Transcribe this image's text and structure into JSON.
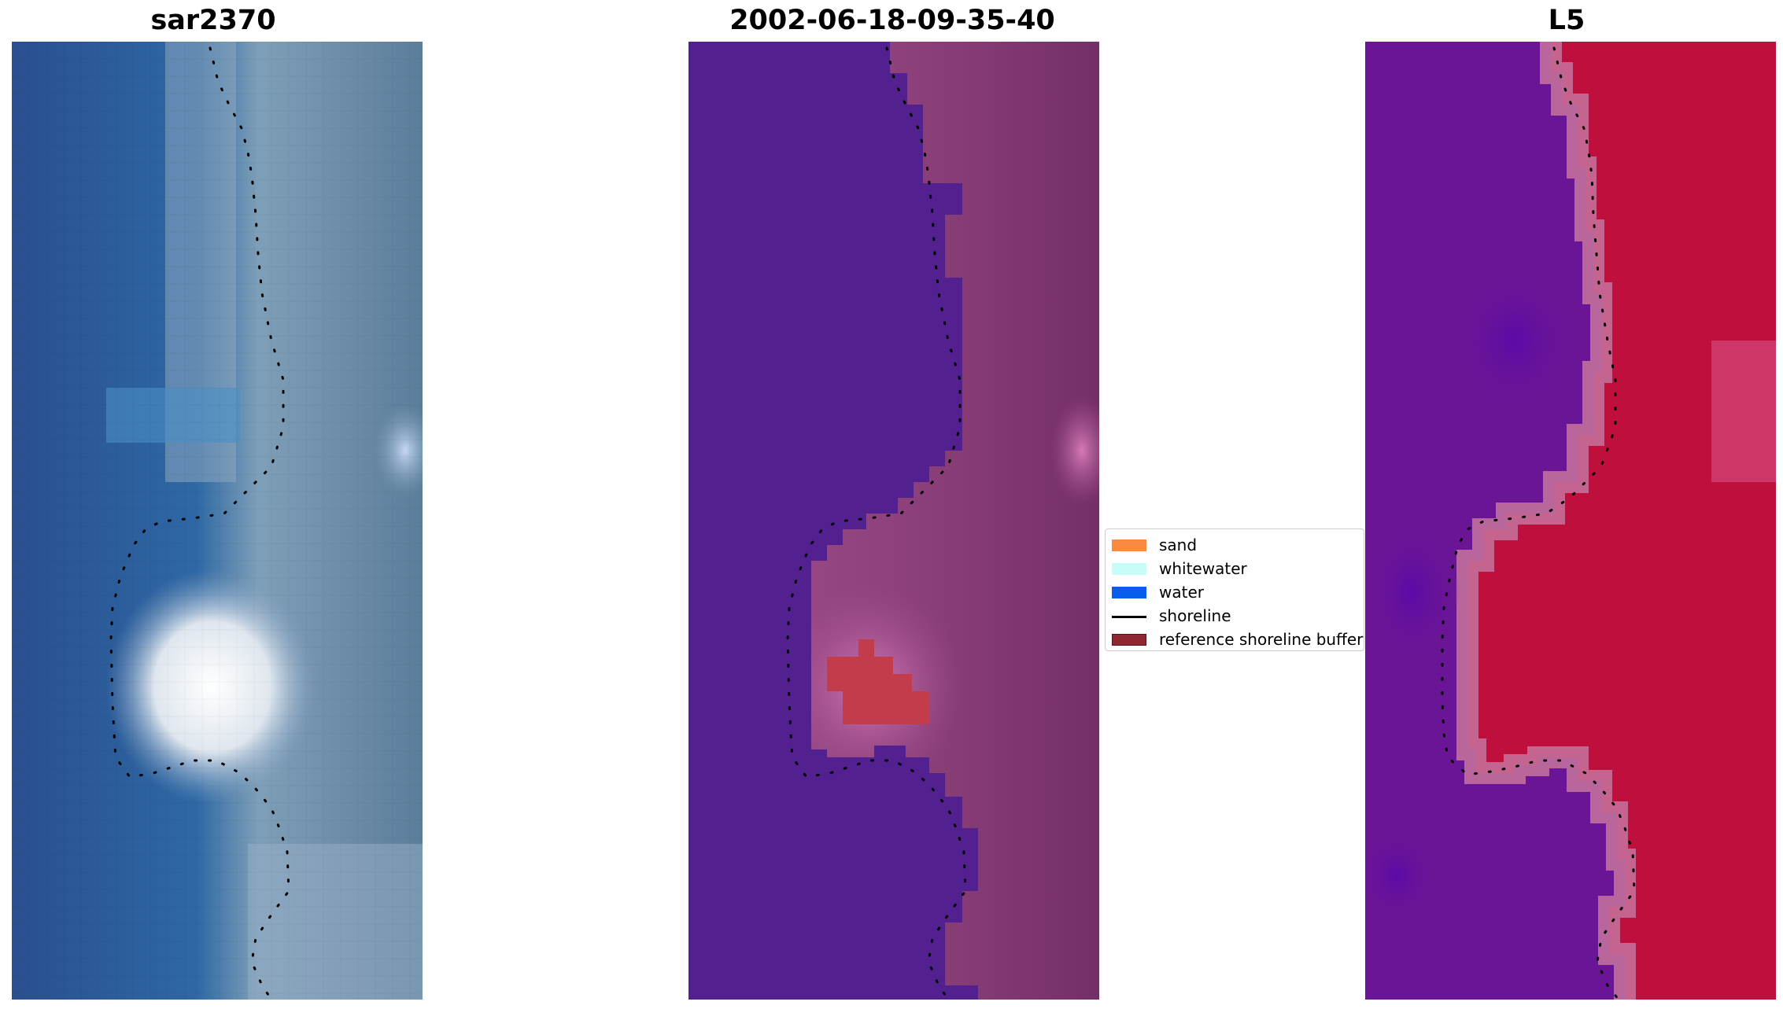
{
  "panels": [
    {
      "title": "sar2370"
    },
    {
      "title": "2002-06-18-09-35-40"
    },
    {
      "title": "L5"
    }
  ],
  "legend": {
    "items": [
      {
        "label": "sand",
        "kind": "patch",
        "color": "#f98a3f"
      },
      {
        "label": "whitewater",
        "kind": "patch",
        "color": "#c8fcf8"
      },
      {
        "label": "water",
        "kind": "patch",
        "color": "#0a5ced"
      },
      {
        "label": "shoreline",
        "kind": "line",
        "color": "#000000"
      },
      {
        "label": "reference shoreline buffer",
        "kind": "patch",
        "color": "#8f2730"
      }
    ]
  },
  "colors": {
    "classified_water": "#53218f",
    "classified_buffer": "#c23c4b",
    "shoreline": "#000000"
  }
}
